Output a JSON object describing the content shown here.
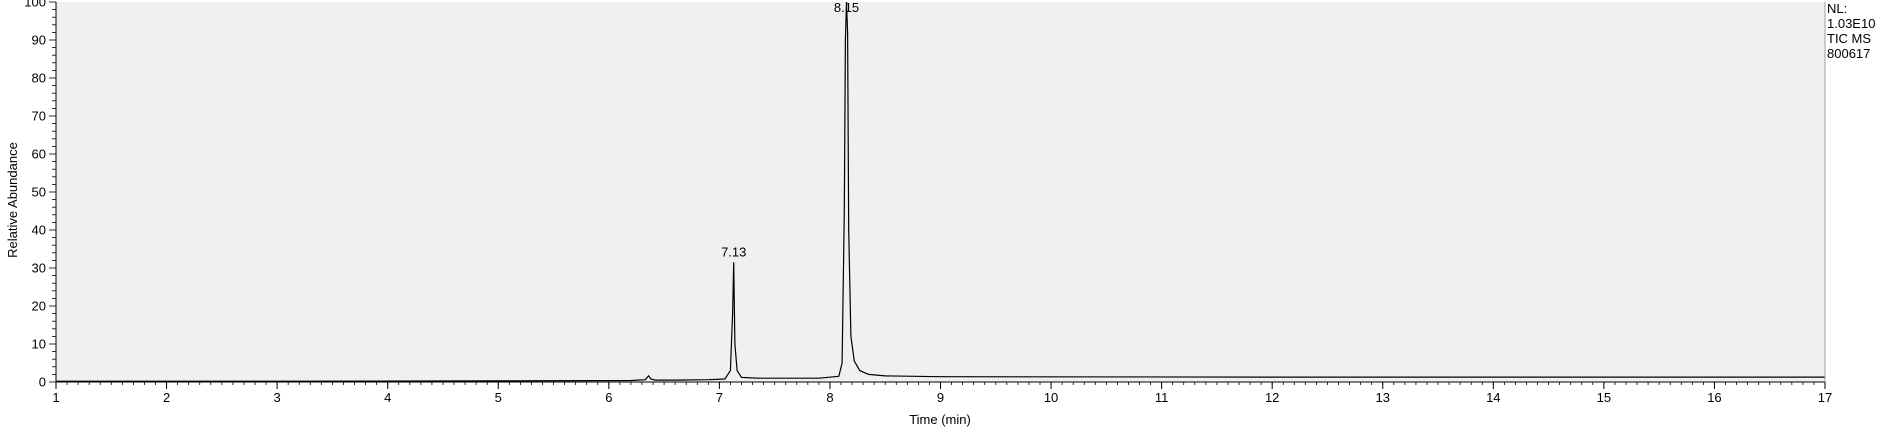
{
  "chart_data": {
    "type": "line",
    "xlabel": "Time (min)",
    "ylabel": "Relative Abundance",
    "xlim": [
      1,
      17
    ],
    "ylim": [
      0,
      100
    ],
    "x_ticks": [
      "1",
      "2",
      "3",
      "4",
      "5",
      "6",
      "7",
      "8",
      "9",
      "10",
      "11",
      "12",
      "13",
      "14",
      "15",
      "16",
      "17"
    ],
    "y_ticks": [
      "0",
      "10",
      "20",
      "30",
      "40",
      "50",
      "60",
      "70",
      "80",
      "90",
      "100"
    ],
    "grid": false,
    "plot_background": "#f0f0f0",
    "line_color": "#000000",
    "series": [
      {
        "x": [
          1.0,
          3.0,
          5.0,
          6.2,
          6.33,
          6.36,
          6.38,
          6.42,
          6.6,
          6.9,
          7.05,
          7.1,
          7.12,
          7.13,
          7.14,
          7.16,
          7.2,
          7.35,
          7.6,
          7.9,
          8.08,
          8.11,
          8.13,
          8.14,
          8.15,
          8.16,
          8.17,
          8.19,
          8.22,
          8.27,
          8.35,
          8.5,
          9.0,
          12.0,
          17.0
        ],
        "y": [
          0.2,
          0.2,
          0.3,
          0.4,
          0.6,
          1.6,
          0.8,
          0.5,
          0.5,
          0.6,
          0.8,
          3.0,
          18.0,
          31.5,
          10.0,
          3.0,
          1.2,
          1.0,
          1.0,
          1.0,
          1.5,
          5.0,
          45.0,
          90.0,
          100.0,
          92.0,
          40.0,
          12.0,
          5.5,
          3.0,
          2.0,
          1.6,
          1.4,
          1.3,
          1.3
        ]
      }
    ],
    "peak_labels": [
      {
        "x": 7.13,
        "y": 31.5,
        "label": "7.13"
      },
      {
        "x": 8.15,
        "y": 100.0,
        "label": "8.15"
      }
    ],
    "annotations": [
      "NL:",
      "1.03E10",
      "TIC  MS",
      "800617"
    ]
  }
}
